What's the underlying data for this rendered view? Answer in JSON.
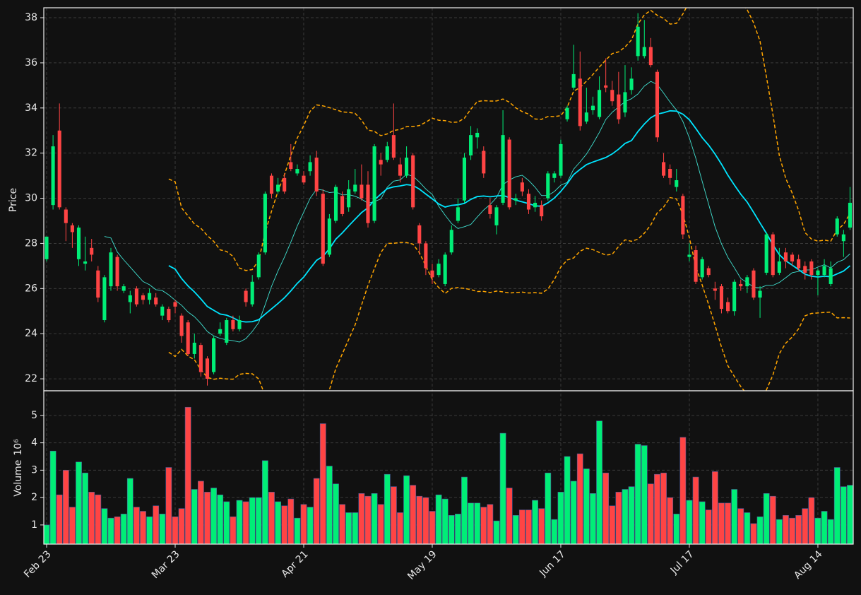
{
  "chart_data": {
    "type": "candlestick",
    "xlim": [
      -0.44,
      125.5
    ],
    "xticks": [
      {
        "value": 0,
        "label": "Feb 23"
      },
      {
        "value": 20,
        "label": "Mar 23"
      },
      {
        "value": 40,
        "label": "Apr 21"
      },
      {
        "value": 60,
        "label": "May 19"
      },
      {
        "value": 80,
        "label": "Jun 17"
      },
      {
        "value": 100,
        "label": "Jul 17"
      },
      {
        "value": 120,
        "label": "Aug 14"
      }
    ],
    "ylabel": "Price",
    "ylim": [
      21.47,
      38.44
    ],
    "yticks": [
      22,
      24,
      26,
      28,
      30,
      32,
      34,
      36,
      38
    ],
    "grid": true,
    "up_color": "#00ee77",
    "down_color": "#ff4444",
    "open": [
      27.3,
      29.7,
      33.0,
      29.5,
      28.8,
      27.3,
      27.1,
      27.8,
      26.8,
      24.6,
      26.1,
      27.4,
      25.9,
      25.4,
      26.0,
      25.7,
      25.5,
      25.6,
      24.8,
      25.1,
      25.4,
      24.8,
      24.5,
      23.1,
      23.5,
      22.9,
      22.3,
      24.0,
      23.6,
      24.6,
      24.2,
      25.9,
      25.3,
      26.5,
      27.6,
      31.0,
      30.3,
      30.9,
      31.6,
      31.1,
      31.0,
      31.2,
      31.8,
      30.2,
      27.5,
      29.0,
      30.1,
      29.6,
      30.3,
      30.6,
      30.6,
      29.0,
      31.7,
      31.7,
      32.8,
      31.5,
      31.0,
      31.9,
      28.8,
      28.0,
      26.8,
      26.6,
      26.2,
      27.6,
      29.0,
      29.9,
      31.9,
      32.7,
      32.1,
      29.7,
      28.8,
      29.8,
      32.6,
      29.9,
      30.7,
      30.2,
      29.6,
      29.7,
      30.0,
      30.9,
      31.0,
      33.5,
      34.9,
      35.3,
      33.4,
      33.9,
      33.6,
      35.0,
      34.8,
      34.6,
      33.8,
      34.8,
      36.3,
      36.3,
      36.7,
      35.6,
      31.6,
      31.3,
      30.5,
      30.1,
      27.4,
      27.7,
      26.5,
      26.9,
      26.0,
      26.1,
      25.4,
      25.0,
      26.2,
      26.1,
      26.8,
      25.6,
      26.7,
      28.4,
      26.7,
      27.6,
      27.5,
      27.3,
      27.0,
      27.2,
      26.6,
      26.6,
      26.2,
      28.4,
      28.1,
      28.7
    ],
    "high": [
      28.3,
      32.8,
      34.2,
      29.6,
      28.9,
      28.8,
      28.3,
      28.2,
      27.0,
      26.6,
      27.8,
      27.5,
      26.2,
      25.9,
      26.1,
      25.8,
      26.0,
      25.8,
      25.3,
      25.2,
      25.5,
      24.9,
      24.6,
      24.0,
      23.6,
      23.0,
      23.9,
      24.5,
      24.7,
      24.8,
      24.8,
      26.0,
      26.6,
      27.6,
      30.3,
      31.1,
      30.9,
      31.1,
      32.4,
      31.5,
      31.2,
      31.9,
      32.1,
      30.4,
      29.3,
      30.6,
      30.3,
      30.8,
      31.3,
      31.5,
      31.2,
      32.4,
      32.0,
      32.5,
      34.2,
      31.8,
      32.3,
      32.0,
      28.9,
      28.1,
      27.1,
      27.3,
      27.6,
      28.8,
      30.0,
      32.0,
      33.2,
      33.1,
      32.3,
      30.0,
      29.7,
      33.9,
      32.7,
      30.2,
      30.9,
      30.4,
      30.1,
      29.9,
      31.2,
      31.2,
      32.6,
      34.1,
      36.8,
      36.5,
      34.9,
      34.5,
      35.4,
      36.2,
      35.2,
      35.6,
      35.9,
      35.8,
      38.2,
      37.9,
      37.1,
      35.7,
      32.0,
      31.5,
      31.3,
      30.2,
      28.0,
      27.9,
      27.4,
      27.0,
      26.3,
      26.2,
      25.6,
      26.4,
      26.4,
      26.6,
      26.9,
      26.1,
      28.5,
      28.5,
      27.8,
      27.8,
      27.6,
      27.5,
      27.2,
      27.3,
      26.9,
      27.3,
      27.2,
      29.2,
      28.6,
      30.5
    ],
    "low": [
      27.2,
      29.5,
      29.5,
      28.1,
      27.8,
      27.0,
      26.8,
      27.2,
      25.4,
      24.5,
      25.9,
      25.9,
      25.8,
      24.9,
      25.2,
      25.3,
      25.3,
      25.2,
      24.6,
      24.5,
      24.9,
      23.6,
      23.0,
      22.9,
      22.1,
      21.7,
      22.2,
      23.9,
      23.5,
      24.1,
      24.1,
      25.2,
      25.2,
      26.4,
      27.5,
      30.0,
      30.2,
      30.2,
      31.2,
      31.0,
      30.6,
      31.0,
      30.1,
      27.0,
      27.4,
      28.9,
      29.2,
      29.4,
      30.2,
      29.9,
      28.7,
      28.9,
      31.0,
      31.6,
      31.7,
      30.7,
      30.9,
      29.5,
      27.5,
      26.6,
      26.2,
      26.5,
      26.1,
      27.5,
      28.9,
      29.8,
      31.7,
      32.2,
      30.9,
      29.1,
      28.4,
      29.7,
      29.5,
      29.7,
      30.1,
      29.3,
      29.4,
      29.0,
      29.9,
      30.7,
      30.9,
      33.4,
      34.8,
      33.0,
      33.3,
      33.7,
      33.5,
      34.7,
      34.1,
      33.3,
      33.6,
      34.6,
      36.1,
      36.2,
      35.8,
      32.5,
      30.9,
      30.6,
      30.3,
      28.2,
      27.2,
      26.2,
      26.4,
      26.5,
      25.5,
      24.9,
      24.9,
      24.8,
      25.9,
      25.8,
      25.5,
      24.7,
      26.6,
      26.5,
      26.6,
      26.9,
      27.0,
      26.8,
      26.4,
      26.4,
      25.7,
      26.5,
      26.1,
      28.3,
      27.4,
      28.6
    ],
    "close": [
      28.3,
      32.3,
      29.6,
      28.9,
      28.5,
      28.7,
      27.2,
      27.5,
      25.6,
      26.5,
      27.6,
      26.1,
      26.1,
      25.7,
      25.3,
      25.5,
      25.8,
      25.3,
      25.2,
      24.6,
      25.2,
      23.9,
      23.1,
      23.6,
      22.3,
      22.0,
      23.8,
      24.2,
      24.6,
      24.2,
      24.6,
      25.4,
      26.3,
      27.5,
      30.2,
      30.2,
      30.6,
      30.3,
      31.3,
      31.3,
      30.7,
      31.6,
      30.3,
      27.1,
      29.1,
      30.5,
      29.3,
      30.4,
      30.6,
      30.0,
      28.9,
      32.3,
      31.5,
      32.3,
      31.8,
      31.0,
      31.8,
      29.6,
      28.0,
      26.9,
      26.5,
      27.1,
      27.5,
      28.6,
      29.6,
      31.8,
      32.8,
      32.9,
      31.1,
      29.3,
      29.6,
      32.8,
      29.6,
      30.0,
      30.3,
      29.5,
      29.8,
      29.2,
      31.1,
      31.1,
      32.4,
      34.0,
      35.5,
      33.2,
      33.8,
      34.1,
      34.8,
      34.9,
      34.3,
      33.5,
      34.7,
      35.3,
      37.6,
      36.7,
      35.9,
      32.7,
      31.0,
      30.9,
      30.8,
      28.4,
      27.5,
      26.3,
      27.3,
      26.6,
      25.9,
      25.1,
      25.0,
      26.3,
      26.1,
      26.5,
      25.6,
      25.9,
      28.4,
      26.6,
      27.2,
      27.2,
      27.2,
      26.9,
      26.7,
      26.6,
      26.8,
      27.0,
      26.9,
      29.1,
      28.4,
      29.8
    ],
    "mav": [
      {
        "window": 10,
        "color": "#40e0d0"
      },
      {
        "window": 20,
        "color": "#00e5ff"
      }
    ],
    "bollinger": {
      "window": 20,
      "std": 2,
      "color": "#ffa500"
    },
    "volume": {
      "ylabel": "Volume",
      "scale_label": "10⁶",
      "ylim": [
        0.3,
        5.9
      ],
      "yticks": [
        1,
        2,
        3,
        4,
        5
      ],
      "values": [
        1.0,
        3.7,
        2.1,
        3.0,
        1.65,
        3.3,
        2.9,
        2.2,
        2.1,
        1.6,
        1.25,
        1.3,
        1.4,
        2.7,
        1.65,
        1.5,
        1.3,
        1.7,
        1.4,
        3.1,
        1.3,
        1.6,
        5.3,
        2.3,
        2.6,
        2.2,
        2.35,
        2.1,
        1.85,
        1.3,
        1.9,
        1.85,
        2.0,
        2.0,
        3.35,
        2.2,
        1.85,
        1.7,
        1.95,
        1.25,
        1.75,
        1.65,
        2.7,
        4.7,
        3.15,
        2.5,
        1.75,
        1.45,
        1.45,
        2.15,
        2.05,
        2.15,
        1.75,
        2.85,
        2.4,
        1.45,
        2.8,
        2.45,
        2.05,
        2.0,
        1.5,
        2.1,
        1.95,
        1.35,
        1.4,
        2.75,
        1.8,
        1.8,
        1.65,
        1.75,
        1.15,
        4.35,
        2.35,
        1.35,
        1.55,
        1.55,
        1.9,
        1.6,
        2.9,
        1.2,
        2.2,
        3.5,
        2.6,
        3.6,
        3.05,
        2.15,
        4.8,
        2.9,
        1.7,
        2.2,
        2.3,
        2.4,
        3.95,
        3.9,
        2.5,
        2.85,
        2.9,
        2.0,
        1.4,
        4.2,
        1.9,
        2.75,
        1.85,
        1.55,
        2.95,
        1.8,
        1.8,
        2.3,
        1.6,
        1.45,
        1.05,
        1.3,
        2.15,
        2.05,
        1.2,
        1.35,
        1.25,
        1.35,
        1.6,
        2.0,
        1.25,
        1.5,
        1.2,
        3.1,
        2.4,
        2.45
      ]
    }
  }
}
